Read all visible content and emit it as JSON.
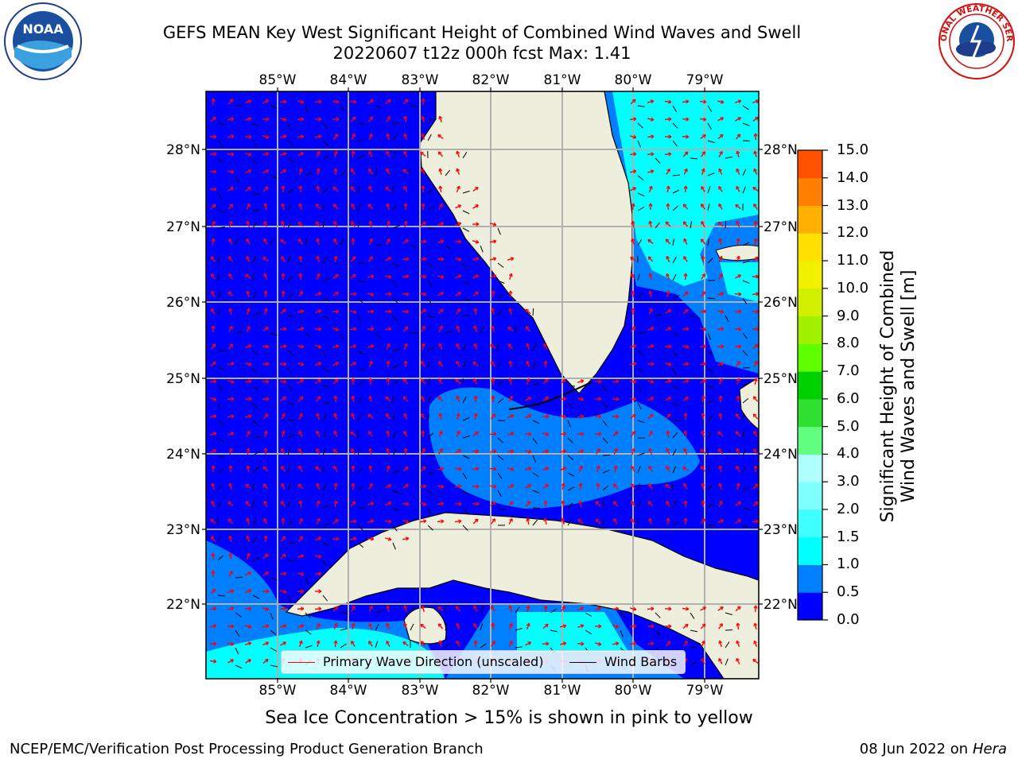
{
  "title_line1": "GEFS MEAN Key West Significant Height of Combined Wind Waves and Swell",
  "title_line2": "20220607 t12z 000h fcst   Max: 1.41",
  "lon_labels": [
    "85°W",
    "84°W",
    "83°W",
    "82°W",
    "81°W",
    "80°W",
    "79°W"
  ],
  "lat_labels": [
    "28°N",
    "27°N",
    "26°N",
    "25°N",
    "24°N",
    "23°N",
    "22°N"
  ],
  "colorbar": {
    "ticks": [
      "15.0",
      "14.0",
      "13.0",
      "12.0",
      "11.0",
      "10.0",
      "9.0",
      "8.0",
      "7.0",
      "6.0",
      "5.0",
      "4.0",
      "3.0",
      "2.0",
      "1.5",
      "1.0",
      "0.5",
      "0.0"
    ],
    "label_line1": "Significant Height of Combined",
    "label_line2": "Wind Waves and Swell [m]",
    "colors": [
      "#0000ff",
      "#0080ff",
      "#00ffff",
      "#40ffff",
      "#80ffff",
      "#b0ffff",
      "#60ff80",
      "#30e030",
      "#00d000",
      "#60ff00",
      "#a0f000",
      "#d0f000",
      "#f0f000",
      "#ffe000",
      "#ffb000",
      "#ff8000",
      "#ff5000",
      "#ff2000",
      "#ff0000"
    ]
  },
  "legend": {
    "wave_label": "Primary Wave Direction (unscaled)",
    "wind_label": "Wind Barbs",
    "wave_color": "#ff0000",
    "wind_color": "#000000"
  },
  "footnote": "Sea Ice Concentration > 15% is shown in pink to yellow",
  "footer_left": "NCEP/EMC/Verification Post Processing Product Generation Branch",
  "footer_right_date": "08 Jun 2022 on",
  "footer_right_host": "Hera",
  "noaa_logo_text": "NOAA",
  "nws_logo_text": "NATIONAL WEATHER SERVICE",
  "colors": {
    "land": "#eeeedc",
    "sea_low": "#0000ff",
    "sea_mid": "#0080ff",
    "sea_high": "#00ffff",
    "grid": "#b0b0b0"
  }
}
